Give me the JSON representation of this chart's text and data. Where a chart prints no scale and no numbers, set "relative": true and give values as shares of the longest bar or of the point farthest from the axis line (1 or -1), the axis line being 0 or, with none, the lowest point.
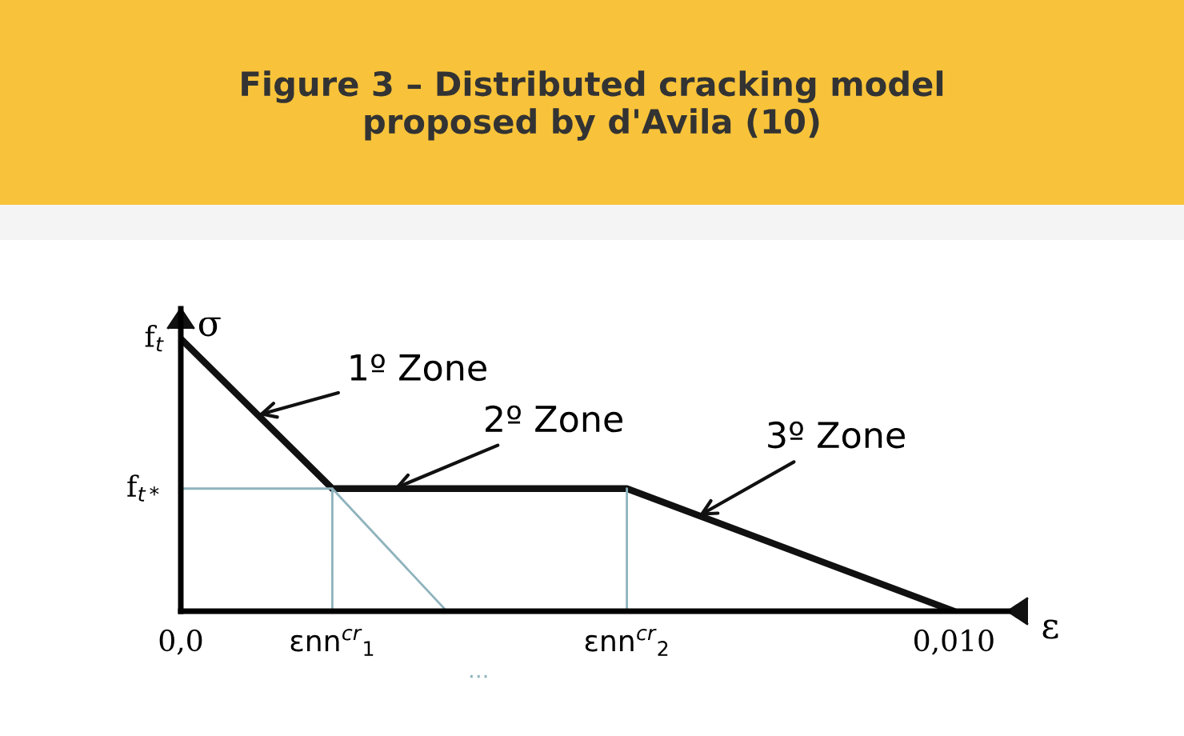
{
  "chart_data": {
    "type": "line",
    "title": "Figure 3 – Distributed cracking model\nproposed by d'Avila (10)",
    "xlabel": "ε",
    "ylabel": "σ",
    "relative": true,
    "xlim": [
      0,
      0.0107
    ],
    "xticks": [
      {
        "value": 0,
        "label": "0,0"
      },
      {
        "value": 0.01,
        "label": "0,010"
      }
    ],
    "series": [
      {
        "color": "#111111",
        "x": [
          0,
          0.00196,
          0.00577,
          0.01
        ],
        "values": [
          1,
          0.45,
          0.45,
          0
        ]
      },
      {
        "color": "#8fb3bd",
        "x": [
          0.00196,
          0.00196,
          0,
          null,
          0.00196,
          0.00344,
          null,
          0.00577,
          0.00577
        ],
        "values": [
          0,
          0.45,
          0.45,
          null,
          0.45,
          0,
          null,
          0.45,
          0
        ]
      }
    ],
    "annotations": [
      {
        "text": "f$_{t}$",
        "x": 0,
        "y": 1
      },
      {
        "text": "f$_{t*}$",
        "x": 0,
        "y": 0.45
      },
      {
        "text": "1º Zone",
        "x": 0.001,
        "y": 0.72
      },
      {
        "text": "2º Zone",
        "x": 0.00276,
        "y": 0.45
      },
      {
        "text": "3º Zone",
        "x": 0.0067,
        "y": 0.35
      },
      {
        "text": "εnn$^{cr}$$_{1}$",
        "x": 0.00196,
        "y": 0
      },
      {
        "text": "εnn$^{cr}$$_{2}$",
        "x": 0.00577,
        "y": 0
      },
      "..."
    ],
    "line_style": "solid"
  }
}
